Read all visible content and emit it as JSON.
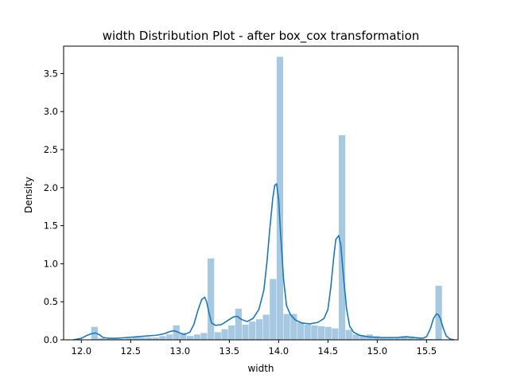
{
  "chart_data": {
    "type": "bar",
    "title": "width Distribution Plot - after box_cox transformation",
    "xlabel": "width",
    "ylabel": "Density",
    "xlim": [
      11.82,
      15.82
    ],
    "ylim": [
      0,
      3.86
    ],
    "xticks": [
      "12.0",
      "12.5",
      "13.0",
      "13.5",
      "14.0",
      "14.5",
      "15.0",
      "15.5"
    ],
    "xtick_values": [
      12.0,
      12.5,
      13.0,
      13.5,
      14.0,
      14.5,
      15.0,
      15.5
    ],
    "yticks": [
      "0.0",
      "0.5",
      "1.0",
      "1.5",
      "2.0",
      "2.5",
      "3.0",
      "3.5"
    ],
    "ytick_values": [
      0.0,
      0.5,
      1.0,
      1.5,
      2.0,
      2.5,
      3.0,
      3.5
    ],
    "grid": false,
    "hist_color": "#a6c8e0",
    "kde_color": "#1f77b4",
    "histogram": {
      "bin_width": 0.0695,
      "bin_starts": [
        12.1,
        12.17,
        12.24,
        12.31,
        12.38,
        12.45,
        12.52,
        12.58,
        12.65,
        12.72,
        12.79,
        12.86,
        12.93,
        13.0,
        13.07,
        13.14,
        13.21,
        13.28,
        13.35,
        13.42,
        13.49,
        13.56,
        13.63,
        13.7,
        13.77,
        13.84,
        13.91,
        13.98,
        14.05,
        14.12,
        14.19,
        14.26,
        14.33,
        14.4,
        14.47,
        14.54,
        14.61,
        14.68,
        14.75,
        14.82,
        14.89,
        14.96,
        15.03,
        15.1,
        15.17,
        15.24,
        15.31,
        15.38,
        15.45,
        15.52,
        15.59
      ],
      "densities": [
        0.17,
        0.02,
        0.01,
        0.01,
        0.01,
        0.02,
        0.03,
        0.03,
        0.03,
        0.03,
        0.05,
        0.07,
        0.19,
        0.09,
        0.05,
        0.07,
        0.09,
        1.07,
        0.1,
        0.14,
        0.19,
        0.41,
        0.2,
        0.24,
        0.27,
        0.33,
        0.8,
        3.72,
        0.34,
        0.34,
        0.23,
        0.2,
        0.19,
        0.18,
        0.17,
        0.15,
        2.69,
        0.13,
        0.07,
        0.06,
        0.07,
        0.05,
        0.03,
        0.03,
        0.03,
        0.05,
        0.04,
        0.02,
        0.01,
        0.01,
        0.71
      ]
    },
    "kde": {
      "x": [
        11.92,
        12.0,
        12.06,
        12.1,
        12.14,
        12.18,
        12.22,
        12.28,
        12.36,
        12.46,
        12.56,
        12.66,
        12.76,
        12.84,
        12.9,
        12.94,
        12.98,
        13.04,
        13.1,
        13.14,
        13.18,
        13.22,
        13.25,
        13.27,
        13.29,
        13.32,
        13.36,
        13.42,
        13.48,
        13.54,
        13.58,
        13.62,
        13.68,
        13.74,
        13.8,
        13.85,
        13.88,
        13.91,
        13.94,
        13.96,
        13.98,
        14.0,
        14.02,
        14.05,
        14.08,
        14.12,
        14.17,
        14.24,
        14.32,
        14.4,
        14.46,
        14.5,
        14.53,
        14.56,
        14.58,
        14.61,
        14.63,
        14.66,
        14.69,
        14.72,
        14.76,
        14.82,
        14.9,
        15.0,
        15.1,
        15.2,
        15.3,
        15.38,
        15.46,
        15.5,
        15.54,
        15.57,
        15.6,
        15.62,
        15.64,
        15.67,
        15.7,
        15.74,
        15.78
      ],
      "y": [
        0.0,
        0.02,
        0.06,
        0.08,
        0.09,
        0.07,
        0.03,
        0.02,
        0.02,
        0.03,
        0.04,
        0.05,
        0.06,
        0.08,
        0.11,
        0.12,
        0.1,
        0.07,
        0.1,
        0.2,
        0.38,
        0.53,
        0.56,
        0.5,
        0.38,
        0.22,
        0.19,
        0.2,
        0.25,
        0.3,
        0.31,
        0.27,
        0.24,
        0.28,
        0.4,
        0.65,
        1.0,
        1.45,
        1.85,
        2.03,
        2.05,
        1.85,
        1.4,
        0.8,
        0.45,
        0.33,
        0.26,
        0.22,
        0.21,
        0.23,
        0.28,
        0.4,
        0.7,
        1.1,
        1.32,
        1.37,
        1.25,
        0.8,
        0.4,
        0.18,
        0.1,
        0.06,
        0.04,
        0.03,
        0.03,
        0.03,
        0.04,
        0.03,
        0.02,
        0.04,
        0.15,
        0.28,
        0.34,
        0.33,
        0.28,
        0.15,
        0.05,
        0.01,
        0.0
      ]
    }
  }
}
